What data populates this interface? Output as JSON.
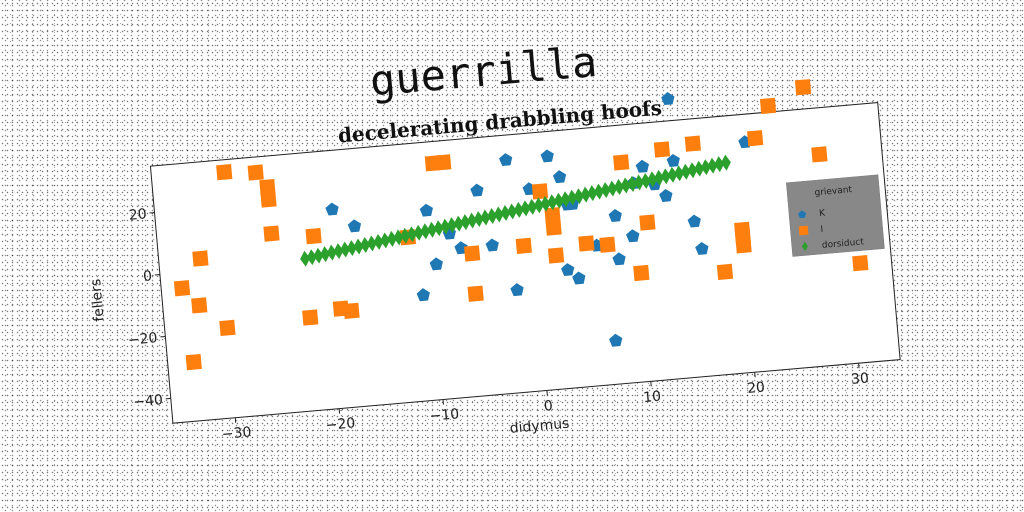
{
  "chart_data": {
    "type": "scatter",
    "title": "guerrilla",
    "subtitle": "decelerating drabbling hoofs",
    "xlabel": "didymus",
    "ylabel": "fellers",
    "xlim": [
      -36,
      34
    ],
    "ylim": [
      -48,
      35
    ],
    "xticks": [
      -30,
      -20,
      -10,
      0,
      10,
      20,
      30
    ],
    "yticks": [
      -40,
      -20,
      0,
      20
    ],
    "grid": false,
    "legend": {
      "title": "grievant",
      "position": "right"
    },
    "series": [
      {
        "name": "K",
        "color": "#1f77b4",
        "marker": "pentagon",
        "points": [
          [
            -19,
            16
          ],
          [
            -17,
            10
          ],
          [
            -10,
            13
          ],
          [
            -8,
            5
          ],
          [
            -9.5,
            -4.5
          ],
          [
            -11,
            -14
          ],
          [
            -7,
            0
          ],
          [
            -4,
            0
          ],
          [
            -5,
            18
          ],
          [
            -2,
            27
          ],
          [
            0,
            17
          ],
          [
            2,
            27
          ],
          [
            3,
            20
          ],
          [
            4,
            11
          ],
          [
            3.5,
            11
          ],
          [
            -2,
            -15
          ],
          [
            3,
            -10
          ],
          [
            4,
            -13
          ],
          [
            6,
            -3
          ],
          [
            8,
            -8
          ],
          [
            8,
            6
          ],
          [
            9.5,
            -1
          ],
          [
            10,
            16
          ],
          [
            11,
            21
          ],
          [
            12,
            15
          ],
          [
            13,
            11
          ],
          [
            14,
            22
          ],
          [
            14,
            42
          ],
          [
            15.5,
            2
          ],
          [
            16,
            -7
          ],
          [
            7,
            -34
          ],
          [
            21,
            26
          ]
        ]
      },
      {
        "name": "I",
        "color": "#ff7f0e",
        "marker": "square",
        "points": [
          [
            -34,
            -5
          ],
          [
            -33.5,
            -29
          ],
          [
            -32.5,
            -11
          ],
          [
            -32,
            4
          ],
          [
            -30,
            -19
          ],
          [
            -29,
            31
          ],
          [
            -26,
            30
          ],
          [
            -25,
            25
          ],
          [
            -25,
            21
          ],
          [
            -25,
            10
          ],
          [
            -22,
            -18
          ],
          [
            -21,
            8
          ],
          [
            -19,
            -16
          ],
          [
            -18,
            -17
          ],
          [
            -12,
            5
          ],
          [
            -9,
            28
          ],
          [
            -8,
            28
          ],
          [
            -6,
            -2
          ],
          [
            -6,
            -15
          ],
          [
            -1,
            -1
          ],
          [
            1,
            16
          ],
          [
            2,
            8
          ],
          [
            2,
            4
          ],
          [
            2,
            -5
          ],
          [
            5,
            -2
          ],
          [
            7,
            -3
          ],
          [
            9,
            23
          ],
          [
            10,
            -13
          ],
          [
            11,
            3
          ],
          [
            13,
            26
          ],
          [
            16,
            27
          ],
          [
            18,
            -15
          ],
          [
            20,
            -2
          ],
          [
            20,
            -4
          ],
          [
            20,
            -7
          ],
          [
            22,
            27
          ],
          [
            23.5,
            37
          ],
          [
            27,
            42
          ],
          [
            28,
            20
          ],
          [
            31,
            -16
          ]
        ]
      },
      {
        "name": "dorsiduct",
        "color": "#2ca02c",
        "marker": "thin_diamond",
        "line": {
          "x_start": -22,
          "x_end": 19,
          "y_start": 1,
          "y_end": 20,
          "count": 64
        }
      }
    ]
  }
}
